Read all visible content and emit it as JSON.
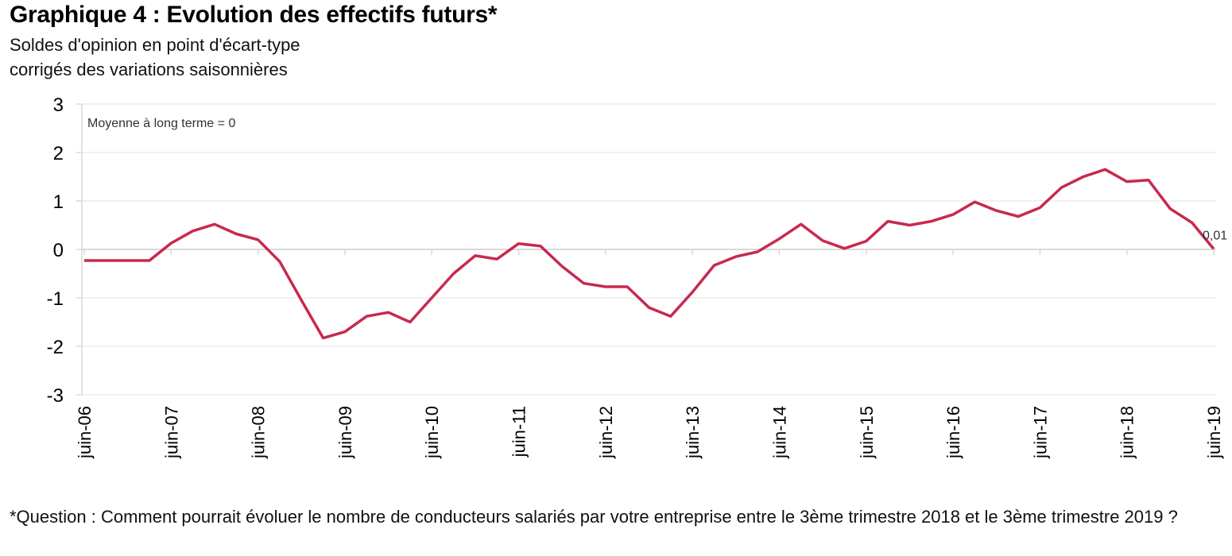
{
  "header": {
    "title": "Graphique 4 : Evolution des effectifs futurs*",
    "subtitle_line1": "Soldes d'opinion en point d'écart-type",
    "subtitle_line2": "corrigés des variations saisonnières"
  },
  "footnote": "*Question : Comment pourrait évoluer le nombre de conducteurs salariés par votre entreprise entre le 3ème trimestre 2018 et le 3ème trimestre 2019 ?",
  "chart_data": {
    "type": "line",
    "title": "Graphique 4 : Evolution des effectifs futurs*",
    "subtitle": "Soldes d'opinion en point d'écart-type corrigés des variations saisonnières",
    "xlabel": "",
    "ylabel": "",
    "ylim": [
      -3,
      3
    ],
    "yticks": [
      "3",
      "2",
      "1",
      "0",
      "-1",
      "-2",
      "-3"
    ],
    "ytick_values": [
      3,
      2,
      1,
      0,
      -1,
      -2,
      -3
    ],
    "xtick_labels": [
      "juin-06",
      "juin-07",
      "juin-08",
      "juin-09",
      "juin-10",
      "juin-11",
      "juin-12",
      "juin-13",
      "juin-14",
      "juin-15",
      "juin-16",
      "juin-17",
      "juin-18",
      "juin-19"
    ],
    "x_frequency": "quarterly",
    "x_start": "juin-06",
    "x_end": "juin-19",
    "grid": true,
    "legend": "none",
    "annotation": "Moyenne à long terme = 0",
    "last_value_label": "0,01",
    "series": [
      {
        "name": "Effectifs futurs",
        "color": "#c8294e",
        "values": [
          -0.23,
          -0.23,
          -0.23,
          -0.23,
          0.13,
          0.38,
          0.52,
          0.32,
          0.2,
          -0.25,
          -1.05,
          -1.83,
          -1.7,
          -1.38,
          -1.3,
          -1.5,
          -1.0,
          -0.5,
          -0.13,
          -0.2,
          0.12,
          0.07,
          -0.35,
          -0.7,
          -0.77,
          -0.77,
          -1.2,
          -1.38,
          -0.88,
          -0.33,
          -0.15,
          -0.05,
          0.22,
          0.52,
          0.18,
          0.02,
          0.17,
          0.58,
          0.5,
          0.58,
          0.72,
          0.98,
          0.8,
          0.68,
          0.86,
          1.28,
          1.5,
          1.65,
          1.4,
          1.43,
          0.84,
          0.55,
          0.01
        ]
      }
    ]
  }
}
